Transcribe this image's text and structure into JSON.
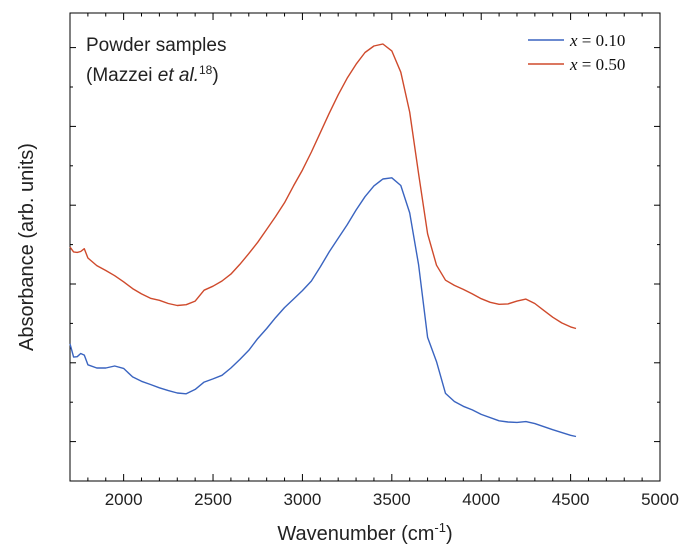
{
  "chart_data": {
    "type": "line",
    "xlabel": "Wavenumber (cm",
    "xlabel_sup": "-1",
    "xlabel_close": ")",
    "ylabel": "Absorbance (arb. units)",
    "xlim": [
      1700,
      5000
    ],
    "ylim": [
      0,
      1
    ],
    "x_ticks": [
      2000,
      2500,
      3000,
      3500,
      4000,
      4500,
      5000
    ],
    "y_tick_labels_shown": false,
    "grid": false,
    "legend_position": "top-right",
    "annotation": {
      "line1": "Powder samples",
      "line2_pre": "(Mazzei ",
      "line2_italic": "et al.",
      "line2_sup": "18",
      "line2_post": ")"
    },
    "series": [
      {
        "name_var": "x",
        "name_rest": " = 0.10",
        "color": "#3a64c0",
        "points": [
          [
            1700,
            0.256
          ],
          [
            1720,
            0.223
          ],
          [
            1740,
            0.224
          ],
          [
            1760,
            0.232
          ],
          [
            1780,
            0.228
          ],
          [
            1800,
            0.204
          ],
          [
            1850,
            0.196
          ],
          [
            1900,
            0.196
          ],
          [
            1950,
            0.201
          ],
          [
            2000,
            0.195
          ],
          [
            2050,
            0.174
          ],
          [
            2100,
            0.163
          ],
          [
            2150,
            0.155
          ],
          [
            2200,
            0.147
          ],
          [
            2250,
            0.14
          ],
          [
            2300,
            0.134
          ],
          [
            2350,
            0.132
          ],
          [
            2400,
            0.143
          ],
          [
            2450,
            0.161
          ],
          [
            2500,
            0.169
          ],
          [
            2550,
            0.178
          ],
          [
            2600,
            0.196
          ],
          [
            2650,
            0.217
          ],
          [
            2700,
            0.24
          ],
          [
            2750,
            0.269
          ],
          [
            2800,
            0.294
          ],
          [
            2850,
            0.321
          ],
          [
            2900,
            0.346
          ],
          [
            2950,
            0.367
          ],
          [
            3000,
            0.388
          ],
          [
            3050,
            0.412
          ],
          [
            3100,
            0.447
          ],
          [
            3150,
            0.484
          ],
          [
            3200,
            0.518
          ],
          [
            3250,
            0.551
          ],
          [
            3300,
            0.588
          ],
          [
            3350,
            0.621
          ],
          [
            3400,
            0.648
          ],
          [
            3450,
            0.665
          ],
          [
            3500,
            0.668
          ],
          [
            3550,
            0.649
          ],
          [
            3600,
            0.581
          ],
          [
            3650,
            0.452
          ],
          [
            3700,
            0.272
          ],
          [
            3750,
            0.212
          ],
          [
            3800,
            0.133
          ],
          [
            3850,
            0.113
          ],
          [
            3900,
            0.101
          ],
          [
            3950,
            0.092
          ],
          [
            4000,
            0.081
          ],
          [
            4100,
            0.065
          ],
          [
            4150,
            0.062
          ],
          [
            4200,
            0.061
          ],
          [
            4250,
            0.063
          ],
          [
            4300,
            0.058
          ],
          [
            4400,
            0.043
          ],
          [
            4500,
            0.029
          ],
          [
            4530,
            0.026
          ]
        ]
      },
      {
        "name_var": "x",
        "name_rest": " = 0.50",
        "color": "#cf4a2c",
        "points": [
          [
            1700,
            0.496
          ],
          [
            1720,
            0.484
          ],
          [
            1740,
            0.483
          ],
          [
            1760,
            0.485
          ],
          [
            1780,
            0.492
          ],
          [
            1800,
            0.469
          ],
          [
            1850,
            0.45
          ],
          [
            1900,
            0.438
          ],
          [
            1950,
            0.425
          ],
          [
            2000,
            0.41
          ],
          [
            2050,
            0.393
          ],
          [
            2100,
            0.38
          ],
          [
            2150,
            0.369
          ],
          [
            2200,
            0.364
          ],
          [
            2250,
            0.356
          ],
          [
            2300,
            0.351
          ],
          [
            2350,
            0.353
          ],
          [
            2400,
            0.362
          ],
          [
            2450,
            0.389
          ],
          [
            2500,
            0.399
          ],
          [
            2550,
            0.412
          ],
          [
            2600,
            0.429
          ],
          [
            2650,
            0.453
          ],
          [
            2700,
            0.48
          ],
          [
            2750,
            0.508
          ],
          [
            2800,
            0.54
          ],
          [
            2850,
            0.572
          ],
          [
            2900,
            0.606
          ],
          [
            2950,
            0.648
          ],
          [
            3000,
            0.687
          ],
          [
            3050,
            0.732
          ],
          [
            3100,
            0.78
          ],
          [
            3150,
            0.828
          ],
          [
            3200,
            0.874
          ],
          [
            3250,
            0.915
          ],
          [
            3300,
            0.95
          ],
          [
            3350,
            0.979
          ],
          [
            3400,
            0.995
          ],
          [
            3450,
            1.0
          ],
          [
            3500,
            0.983
          ],
          [
            3550,
            0.93
          ],
          [
            3600,
            0.831
          ],
          [
            3650,
            0.678
          ],
          [
            3700,
            0.529
          ],
          [
            3750,
            0.451
          ],
          [
            3800,
            0.414
          ],
          [
            3850,
            0.401
          ],
          [
            3900,
            0.391
          ],
          [
            3950,
            0.38
          ],
          [
            4000,
            0.368
          ],
          [
            4050,
            0.359
          ],
          [
            4100,
            0.354
          ],
          [
            4150,
            0.355
          ],
          [
            4200,
            0.362
          ],
          [
            4250,
            0.367
          ],
          [
            4300,
            0.356
          ],
          [
            4350,
            0.339
          ],
          [
            4400,
            0.322
          ],
          [
            4450,
            0.308
          ],
          [
            4500,
            0.298
          ],
          [
            4530,
            0.294
          ]
        ]
      }
    ]
  }
}
